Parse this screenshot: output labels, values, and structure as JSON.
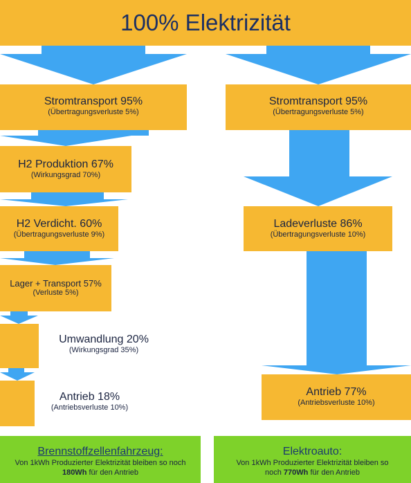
{
  "header": {
    "title": "100% Elektrizität"
  },
  "left": {
    "transport": {
      "title": "Stromtransport 95%",
      "sub": "(Übertragungsverluste 5%)"
    },
    "h2_production": {
      "title": "H2 Produktion 67%",
      "sub": "(Wirkungsgrad 70%)"
    },
    "h2_compression": {
      "title": "H2 Verdicht. 60%",
      "sub": "(Übertragungsverluste 9%)"
    },
    "storage": {
      "title": "Lager + Transport 57%",
      "sub": "(Verluste 5%)"
    },
    "conversion": {
      "title": "Umwandlung 20%",
      "sub": "(Wirkungsgrad 35%)"
    },
    "drive": {
      "title": "Antrieb 18%",
      "sub": "(Antriebsverluste 10%)"
    }
  },
  "right": {
    "transport": {
      "title": "Stromtransport 95%",
      "sub": "(Übertragungsverluste 5%)"
    },
    "charging": {
      "title": "Ladeverluste 86%",
      "sub": "(Übertragungsverluste 10%)"
    },
    "drive": {
      "title": "Antrieb 77%",
      "sub": "(Antriebsverluste 10%)"
    }
  },
  "footer_left": {
    "title": "Brennstoffzellenfahrzeug:",
    "line1": "Von 1kWh Produzierter Elektrizität bleiben so noch",
    "value": "180Wh",
    "line2_suffix": " für den Antrieb"
  },
  "footer_right": {
    "title": "Elektroauto:",
    "line1": "Von 1kWh Produzierter Elektrizität bleiben so",
    "line2_prefix": "noch ",
    "value": "770Wh",
    "line2_suffix": " für den Antrieb"
  },
  "colors": {
    "box": "#f6b832",
    "arrow": "#3fa6f2",
    "footer": "#7ed22a",
    "text": "#1a2340"
  }
}
